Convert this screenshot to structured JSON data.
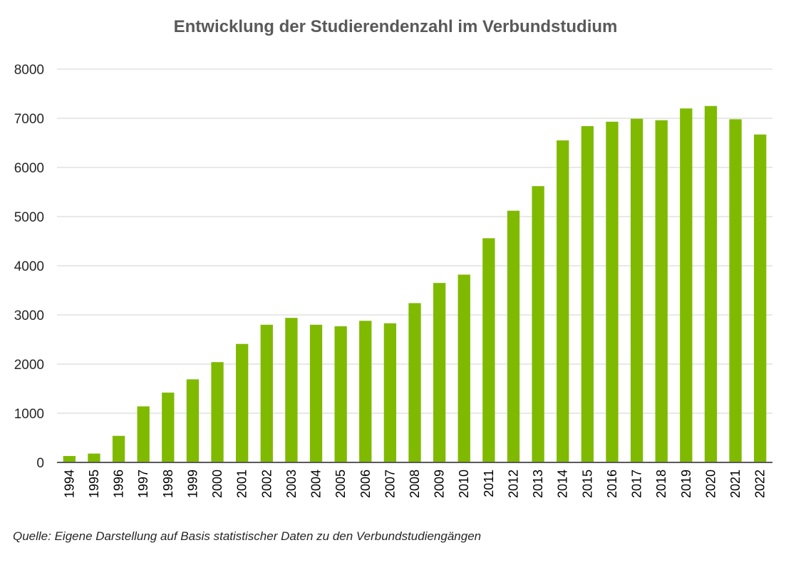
{
  "chart_data": {
    "type": "bar",
    "title": "Entwicklung der Studierendenzahl im Verbundstudium",
    "xlabel": "",
    "ylabel": "",
    "ylim": [
      0,
      8000
    ],
    "yticks": [
      0,
      1000,
      2000,
      3000,
      4000,
      5000,
      6000,
      7000,
      8000
    ],
    "grid": true,
    "legend": "none",
    "bar_color": "#7fba00",
    "categories": [
      "1994",
      "1995",
      "1996",
      "1997",
      "1998",
      "1999",
      "2000",
      "2001",
      "2002",
      "2003",
      "2004",
      "2005",
      "2006",
      "2007",
      "2008",
      "2009",
      "2010",
      "2011",
      "2012",
      "2013",
      "2014",
      "2015",
      "2016",
      "2017",
      "2018",
      "2019",
      "2020",
      "2021",
      "2022"
    ],
    "values": [
      130,
      180,
      540,
      1140,
      1420,
      1690,
      2040,
      2410,
      2800,
      2940,
      2800,
      2770,
      2880,
      2830,
      3240,
      3650,
      3820,
      4560,
      5120,
      5620,
      6550,
      6840,
      6930,
      6990,
      6960,
      7200,
      7250,
      6980,
      6670
    ]
  },
  "source_note": "Quelle: Eigene Darstellung auf Basis statistischer Daten zu den Verbundstudiengängen"
}
